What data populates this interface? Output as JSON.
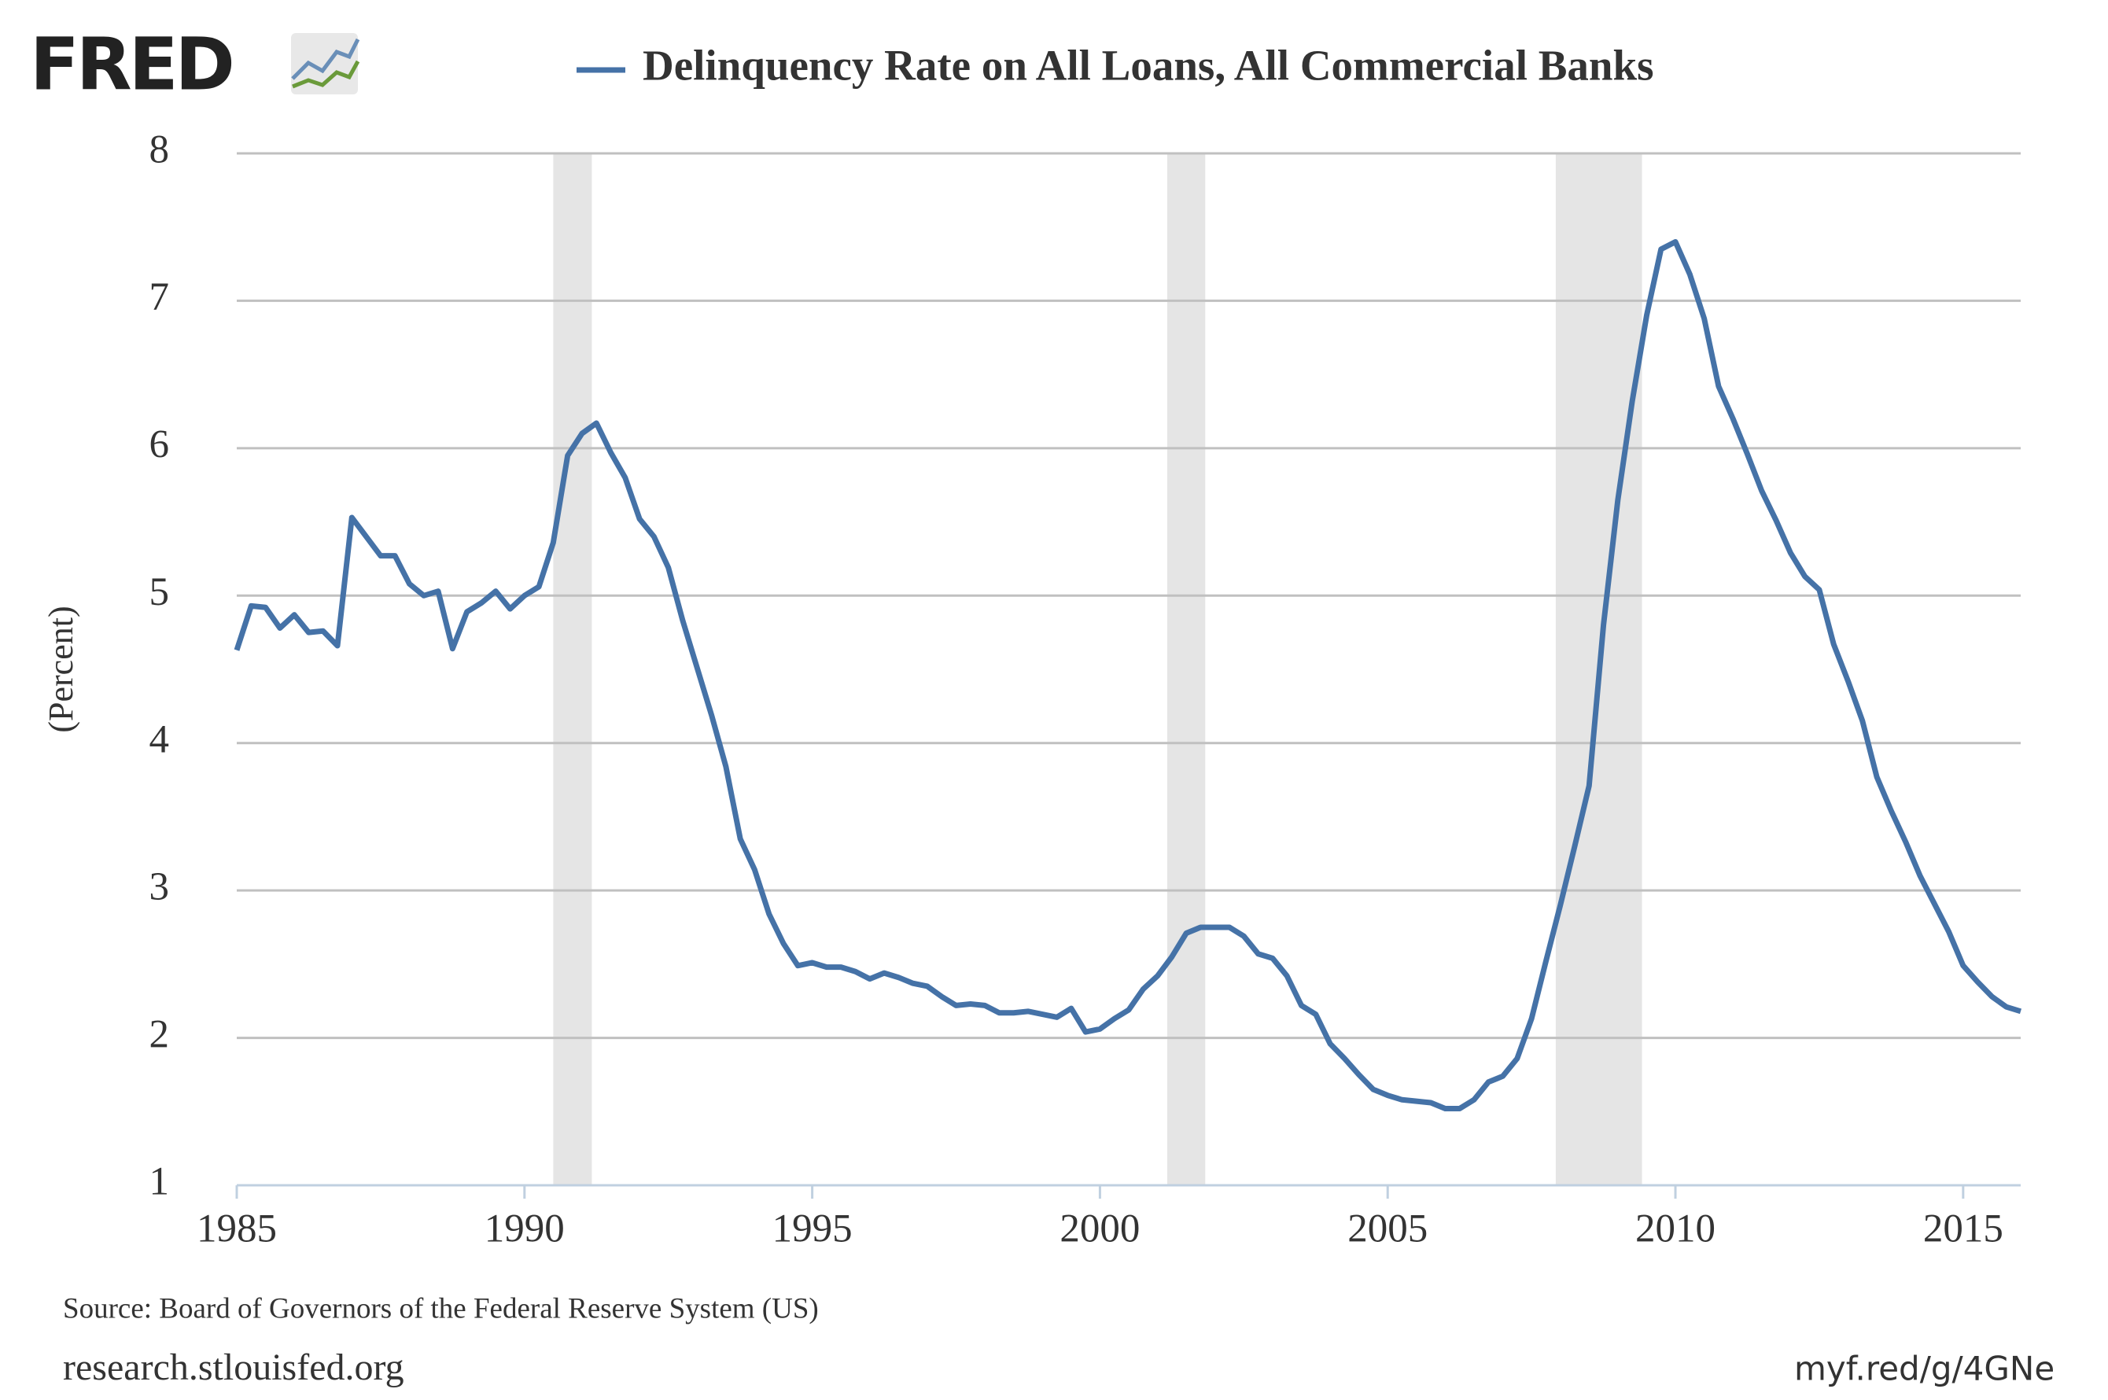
{
  "logo": "FRED",
  "chart_data": {
    "type": "line",
    "ylabel": "(Percent)",
    "source": "Source: Board of Governors of the Federal Reserve System (US)",
    "footer_left": "research.stlouisfed.org",
    "footer_right": "myf.red/g/4GNe",
    "x": [
      1985,
      1985.25,
      1985.5,
      1985.75,
      1986,
      1986.25,
      1986.5,
      1986.75,
      1987,
      1987.25,
      1987.5,
      1987.75,
      1988,
      1988.25,
      1988.5,
      1988.75,
      1989,
      1989.25,
      1989.5,
      1989.75,
      1990,
      1990.25,
      1990.5,
      1990.75,
      1991,
      1991.25,
      1991.5,
      1991.75,
      1992,
      1992.25,
      1992.5,
      1992.75,
      1993,
      1993.25,
      1993.5,
      1993.75,
      1994,
      1994.25,
      1994.5,
      1994.75,
      1995,
      1995.25,
      1995.5,
      1995.75,
      1996,
      1996.25,
      1996.5,
      1996.75,
      1997,
      1997.25,
      1997.5,
      1997.75,
      1998,
      1998.25,
      1998.5,
      1998.75,
      1999,
      1999.25,
      1999.5,
      1999.75,
      2000,
      2000.25,
      2000.5,
      2000.75,
      2001,
      2001.25,
      2001.5,
      2001.75,
      2002,
      2002.25,
      2002.5,
      2002.75,
      2003,
      2003.25,
      2003.5,
      2003.75,
      2004,
      2004.25,
      2004.5,
      2004.75,
      2005,
      2005.25,
      2005.5,
      2005.75,
      2006,
      2006.25,
      2006.5,
      2006.75,
      2007,
      2007.25,
      2007.5,
      2007.75,
      2008,
      2008.25,
      2008.5,
      2008.75,
      2009,
      2009.25,
      2009.5,
      2009.75,
      2010,
      2010.25,
      2010.5,
      2010.75,
      2011,
      2011.25,
      2011.5,
      2011.75,
      2012,
      2012.25,
      2012.5,
      2012.75,
      2013,
      2013.25,
      2013.5,
      2013.75,
      2014,
      2014.25,
      2014.5,
      2014.75,
      2015,
      2015.25,
      2015.5,
      2015.75,
      2016
    ],
    "series": [
      {
        "name": "Delinquency Rate on All Loans, All Commercial Banks",
        "color": "#4572a7",
        "values": [
          4.63,
          4.93,
          4.92,
          4.78,
          4.87,
          4.75,
          4.76,
          4.66,
          5.53,
          5.4,
          5.27,
          5.27,
          5.08,
          5.0,
          5.03,
          4.64,
          4.89,
          4.95,
          5.03,
          4.91,
          5.0,
          5.06,
          5.36,
          5.95,
          6.1,
          6.17,
          5.97,
          5.8,
          5.52,
          5.4,
          5.19,
          4.83,
          4.51,
          4.19,
          3.84,
          3.35,
          3.14,
          2.84,
          2.64,
          2.49,
          2.51,
          2.48,
          2.48,
          2.45,
          2.4,
          2.44,
          2.41,
          2.37,
          2.35,
          2.28,
          2.22,
          2.23,
          2.22,
          2.17,
          2.17,
          2.18,
          2.16,
          2.14,
          2.2,
          2.04,
          2.06,
          2.13,
          2.19,
          2.33,
          2.42,
          2.55,
          2.71,
          2.75,
          2.75,
          2.75,
          2.69,
          2.57,
          2.54,
          2.42,
          2.22,
          2.16,
          1.96,
          1.86,
          1.75,
          1.65,
          1.61,
          1.58,
          1.57,
          1.56,
          1.52,
          1.52,
          1.58,
          1.7,
          1.74,
          1.86,
          2.13,
          2.52,
          2.9,
          3.3,
          3.71,
          4.8,
          5.65,
          6.32,
          6.9,
          7.35,
          7.4,
          7.18,
          6.88,
          6.42,
          6.2,
          5.96,
          5.71,
          5.51,
          5.29,
          5.13,
          5.04,
          4.67,
          4.42,
          4.15,
          3.77,
          3.54,
          3.33,
          3.1,
          2.91,
          2.72,
          2.49,
          2.38,
          2.28,
          2.21,
          2.18
        ]
      }
    ],
    "recessions": [
      {
        "start": 1990.5,
        "end": 1991.17
      },
      {
        "start": 2001.17,
        "end": 2001.83
      },
      {
        "start": 2007.92,
        "end": 2009.42
      }
    ],
    "recession_color": "#e5e5e5",
    "xlim": [
      1985,
      2016
    ],
    "xticks": [
      1985,
      1990,
      1995,
      2000,
      2005,
      2010,
      2015
    ],
    "ylim": [
      1,
      8
    ],
    "yticks": [
      1,
      2,
      3,
      4,
      5,
      6,
      7,
      8
    ],
    "grid": true
  }
}
